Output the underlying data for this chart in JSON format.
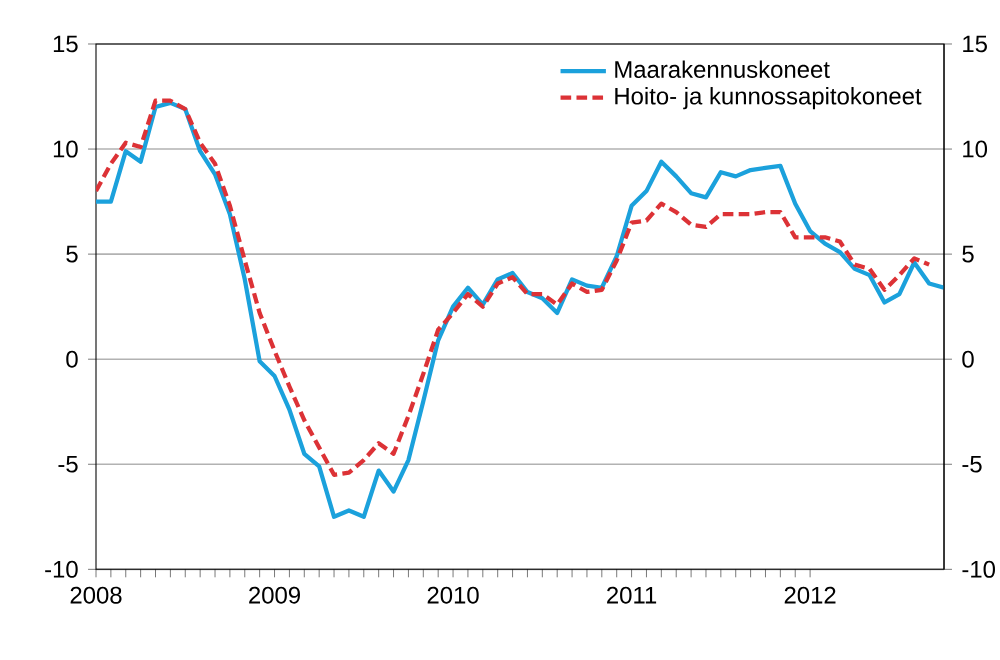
{
  "chart_data": {
    "type": "line",
    "x": [
      "2008-01",
      "2008-02",
      "2008-03",
      "2008-04",
      "2008-05",
      "2008-06",
      "2008-07",
      "2008-08",
      "2008-09",
      "2008-10",
      "2008-11",
      "2008-12",
      "2009-01",
      "2009-02",
      "2009-03",
      "2009-04",
      "2009-05",
      "2009-06",
      "2009-07",
      "2009-08",
      "2009-09",
      "2009-10",
      "2009-11",
      "2009-12",
      "2010-01",
      "2010-02",
      "2010-03",
      "2010-04",
      "2010-05",
      "2010-06",
      "2010-07",
      "2010-08",
      "2010-09",
      "2010-10",
      "2010-11",
      "2010-12",
      "2011-01",
      "2011-02",
      "2011-03",
      "2011-04",
      "2011-05",
      "2011-06",
      "2011-07",
      "2011-08",
      "2011-09",
      "2011-10",
      "2011-11",
      "2011-12",
      "2012-01",
      "2012-02",
      "2012-03",
      "2012-04",
      "2012-05",
      "2012-06",
      "2012-07",
      "2012-08",
      "2012-09",
      "2012-10"
    ],
    "series": [
      {
        "name": "Maarakennuskoneet",
        "color": "#1ba1dc",
        "line_style": "solid",
        "values": [
          7.5,
          7.5,
          9.9,
          9.4,
          12.0,
          12.2,
          11.9,
          9.9,
          8.8,
          6.9,
          3.8,
          -0.1,
          -0.8,
          -2.4,
          -4.5,
          -5.1,
          -7.5,
          -7.2,
          -7.5,
          -5.3,
          -6.3,
          -4.8,
          -2.0,
          0.9,
          2.5,
          3.4,
          2.6,
          3.8,
          4.1,
          3.2,
          2.9,
          2.2,
          3.8,
          3.5,
          3.4,
          4.9,
          7.3,
          8.0,
          9.4,
          8.7,
          7.9,
          7.7,
          8.9,
          8.7,
          9.0,
          9.1,
          9.2,
          7.4,
          6.1,
          5.5,
          5.1,
          4.3,
          4.0,
          2.7,
          3.1,
          4.6,
          3.6,
          3.4
        ]
      },
      {
        "name": "Hoito- ja kunnossapitokoneet",
        "color": "#dc3236",
        "line_style": "dashed",
        "values": [
          8.0,
          9.3,
          10.3,
          10.1,
          12.3,
          12.3,
          11.9,
          10.3,
          9.3,
          7.3,
          4.7,
          2.2,
          0.4,
          -1.3,
          -2.9,
          -4.2,
          -5.5,
          -5.4,
          -4.8,
          -4.0,
          -4.5,
          -2.7,
          -0.7,
          1.4,
          2.2,
          3.1,
          2.5,
          3.6,
          3.9,
          3.1,
          3.1,
          2.6,
          3.6,
          3.2,
          3.3,
          4.7,
          6.5,
          6.6,
          7.4,
          7.0,
          6.4,
          6.3,
          6.9,
          6.9,
          6.9,
          7.0,
          7.0,
          5.8,
          5.8,
          5.8,
          5.6,
          4.5,
          4.3,
          3.3,
          4.0,
          4.8,
          4.5,
          null
        ]
      }
    ],
    "xlim": [
      "2008-01",
      "2012-10"
    ],
    "xticks": [
      "2008",
      "2009",
      "2010",
      "2011",
      "2012"
    ],
    "ylim": [
      -10,
      15
    ],
    "yticks": [
      -10,
      -5,
      0,
      5,
      10,
      15
    ],
    "y2lim": [
      -10,
      15
    ],
    "y2ticks": [
      -10,
      -5,
      0,
      5,
      10,
      15
    ],
    "grid": "y",
    "legend": "top right"
  }
}
